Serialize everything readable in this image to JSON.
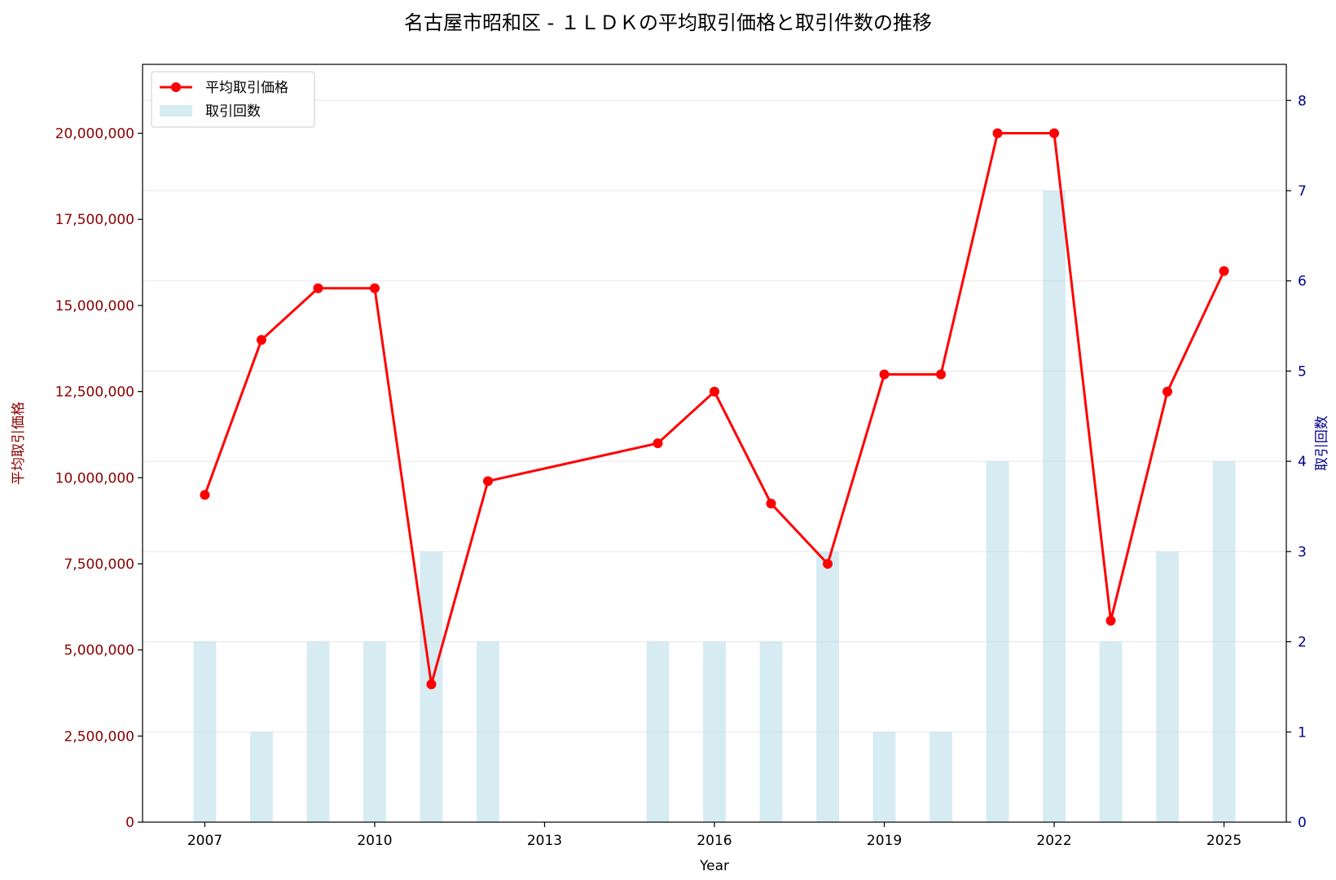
{
  "chart_data": {
    "type": "bar+line",
    "title": "名古屋市昭和区 - １ＬＤＫの平均取引価格と取引件数の推移",
    "xlabel": "Year",
    "ylabel_left": "平均取引価格",
    "ylabel_right": "取引回数",
    "x_ticks": [
      2007,
      2010,
      2013,
      2016,
      2019,
      2022,
      2025
    ],
    "xlim": [
      2005.9,
      2026.1
    ],
    "ylim_left": [
      0,
      22000000
    ],
    "ylim_right": [
      0,
      8.4
    ],
    "y_ticks_left": [
      0,
      2500000,
      5000000,
      7500000,
      10000000,
      12500000,
      15000000,
      17500000,
      20000000
    ],
    "y_tick_labels_left": [
      "0",
      "2,500,000",
      "5,000,000",
      "7,500,000",
      "10,000,000",
      "12,500,000",
      "15,000,000",
      "17,500,000",
      "20,000,000"
    ],
    "y_ticks_right": [
      0,
      1,
      2,
      3,
      4,
      5,
      6,
      7,
      8
    ],
    "y_tick_labels_right": [
      "0",
      "1",
      "2",
      "3",
      "4",
      "5",
      "6",
      "7",
      "8"
    ],
    "grid": "horizontal (right axis)",
    "legend_position": "top-left",
    "series": [
      {
        "name": "平均取引価格",
        "kind": "line",
        "color": "#ff0000",
        "points": [
          {
            "year": 2007,
            "value": 9500000
          },
          {
            "year": 2008,
            "value": 14000000
          },
          {
            "year": 2009,
            "value": 15500000
          },
          {
            "year": 2010,
            "value": 15500000
          },
          {
            "year": 2011,
            "value": 4000000
          },
          {
            "year": 2012,
            "value": 9900000
          },
          {
            "year": 2015,
            "value": 11000000
          },
          {
            "year": 2016,
            "value": 12500000
          },
          {
            "year": 2017,
            "value": 9250000
          },
          {
            "year": 2018,
            "value": 7500000
          },
          {
            "year": 2019,
            "value": 13000000
          },
          {
            "year": 2020,
            "value": 13000000
          },
          {
            "year": 2021,
            "value": 20000000
          },
          {
            "year": 2022,
            "value": 20000000
          },
          {
            "year": 2023,
            "value": 5850000
          },
          {
            "year": 2024,
            "value": 12500000
          },
          {
            "year": 2025,
            "value": 16000000
          }
        ]
      },
      {
        "name": "取引回数",
        "kind": "bar",
        "color": "#add8e6",
        "points": [
          {
            "year": 2007,
            "value": 2
          },
          {
            "year": 2008,
            "value": 1
          },
          {
            "year": 2009,
            "value": 2
          },
          {
            "year": 2010,
            "value": 2
          },
          {
            "year": 2011,
            "value": 3
          },
          {
            "year": 2012,
            "value": 2
          },
          {
            "year": 2015,
            "value": 2
          },
          {
            "year": 2016,
            "value": 2
          },
          {
            "year": 2017,
            "value": 2
          },
          {
            "year": 2018,
            "value": 3
          },
          {
            "year": 2019,
            "value": 1
          },
          {
            "year": 2020,
            "value": 1
          },
          {
            "year": 2021,
            "value": 4
          },
          {
            "year": 2022,
            "value": 7
          },
          {
            "year": 2023,
            "value": 2
          },
          {
            "year": 2024,
            "value": 3
          },
          {
            "year": 2025,
            "value": 4
          }
        ]
      }
    ]
  }
}
